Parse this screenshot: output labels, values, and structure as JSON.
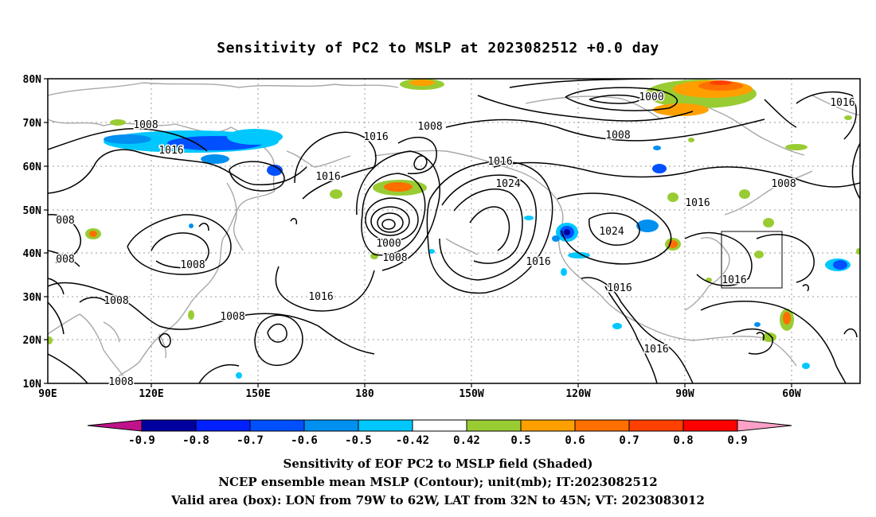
{
  "title": "Sensitivity of PC2 to MSLP at 2023082512 +0.0 day",
  "lat_labels": [
    "80N",
    "70N",
    "60N",
    "50N",
    "40N",
    "30N",
    "20N",
    "10N"
  ],
  "lon_labels": [
    "90E",
    "120E",
    "150E",
    "180",
    "150W",
    "120W",
    "90W",
    "60W"
  ],
  "contour_labels": [
    {
      "text": "1008"
    },
    {
      "text": "1016"
    },
    {
      "text": "1008"
    },
    {
      "text": "1016"
    },
    {
      "text": "1016"
    },
    {
      "text": "1016"
    },
    {
      "text": "1024"
    },
    {
      "text": "1000"
    },
    {
      "text": "1008"
    },
    {
      "text": "1000"
    },
    {
      "text": "1008"
    },
    {
      "text": "1016"
    },
    {
      "text": "1008"
    },
    {
      "text": "1016"
    },
    {
      "text": "1024"
    },
    {
      "text": "1016"
    },
    {
      "text": "1016"
    },
    {
      "text": "1016"
    },
    {
      "text": "1016"
    },
    {
      "text": "1016"
    },
    {
      "text": "008"
    },
    {
      "text": "008"
    },
    {
      "text": "1008"
    },
    {
      "text": "1008"
    },
    {
      "text": "1008"
    },
    {
      "text": "1008"
    }
  ],
  "colorbar": {
    "labels": [
      "-0.9",
      "-0.8",
      "-0.7",
      "-0.6",
      "-0.5",
      "-0.42",
      "0.42",
      "0.5",
      "0.6",
      "0.7",
      "0.8",
      "0.9"
    ],
    "colors": [
      "#0000a0",
      "#0020ff",
      "#0050ff",
      "#0090f0",
      "#00c8ff",
      "#ffffff",
      "#99cc33",
      "#ffa000",
      "#ff7000",
      "#ff4000",
      "#ff0000"
    ],
    "low_end": "#c0128a",
    "high_end": "#ffa0c8"
  },
  "valid_box": {
    "lon_from": "79W",
    "lon_to": "62W",
    "lat_from": "32N",
    "lat_to": "45N"
  },
  "captions": [
    "Sensitivity of EOF PC2 to MSLP field (Shaded)",
    "NCEP ensemble mean MSLP (Contour); unit(mb); IT:2023082512",
    "Valid area (box): LON from 79W to 62W, LAT from 32N to 45N; VT: 2023083012"
  ]
}
